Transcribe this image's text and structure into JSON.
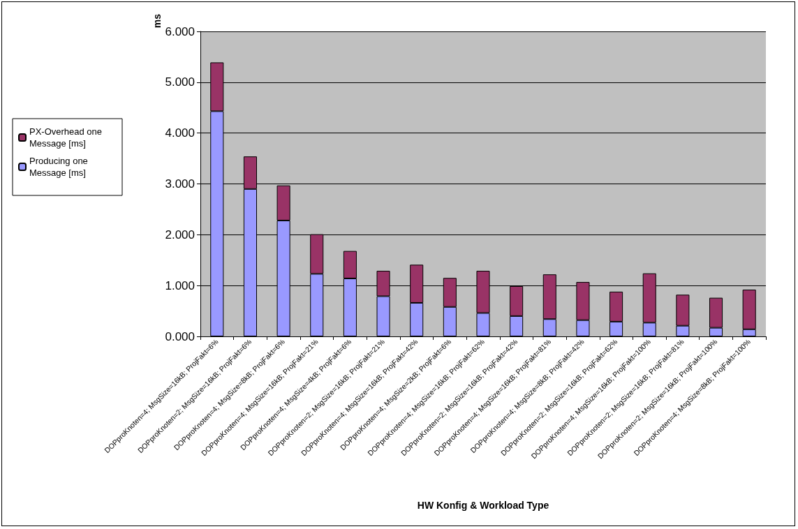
{
  "chart_data": {
    "type": "bar",
    "stacked": true,
    "xlabel": "HW Konfig & Workload Type",
    "ylabel": "ms",
    "categories": [
      "DOPproKnoten=4; MsgSize=16kB; ProjFakt=6%",
      "DOPproKnoten=2; MsgSize=16kB; ProjFakt=6%",
      "DOPproKnoten=4; MsgSize=8kB; ProjFakt=6%",
      "DOPproKnoten=4; MsgSize=16kB; ProjFakt=21%",
      "DOPproKnoten=4; MsgSize=4kB; ProjFakt=6%",
      "DOPproKnoten=2; MsgSize=16kB; ProjFakt=21%",
      "DOPproKnoten=4; MsgSize=16kB; ProjFakt=42%",
      "DOPproKnoten=4; MsgSize=2kB; ProjFakt=6%",
      "DOPproKnoten=4; MsgSize=16kB; ProjFakt=62%",
      "DOPproKnoten=2; MsgSize=16kB; ProjFakt=42%",
      "DOPproKnoten=4; MsgSize=16kB; ProjFakt=81%",
      "DOPproKnoten=4; MsgSize=8kB; ProjFakt=42%",
      "DOPproKnoten=2; MsgSize=16kB; ProjFakt=62%",
      "DOPproKnoten=4; MsgSize=16kB; ProjFakt=100%",
      "DOPproKnoten=2; MsgSize=16kB; ProjFakt=81%",
      "DOPproKnoten=2; MsgSize=16kB; ProjFakt=100%",
      "DOPproKnoten=4; MsgSize=8kB; ProjFakt=100%"
    ],
    "series": [
      {
        "name": "Producing one Message [ms]",
        "color": "#9999ff",
        "values": [
          4.43,
          2.9,
          2.28,
          1.23,
          1.14,
          0.79,
          0.66,
          0.58,
          0.46,
          0.4,
          0.34,
          0.32,
          0.29,
          0.27,
          0.21,
          0.17,
          0.14
        ]
      },
      {
        "name": "PX-Overhead one Message [ms]",
        "color": "#993366",
        "values": [
          0.96,
          0.64,
          0.69,
          0.78,
          0.54,
          0.5,
          0.75,
          0.57,
          0.83,
          0.59,
          0.88,
          0.75,
          0.59,
          0.97,
          0.61,
          0.59,
          0.78
        ]
      }
    ],
    "ylim": [
      0,
      6
    ],
    "yticks": [
      {
        "value": 0,
        "label": "0.000"
      },
      {
        "value": 1,
        "label": "1.000"
      },
      {
        "value": 2,
        "label": "2.000"
      },
      {
        "value": 3,
        "label": "3.000"
      },
      {
        "value": 4,
        "label": "4.000"
      },
      {
        "value": 5,
        "label": "5.000"
      },
      {
        "value": 6,
        "label": "6.000"
      }
    ],
    "grid": "y",
    "legend": "left"
  }
}
